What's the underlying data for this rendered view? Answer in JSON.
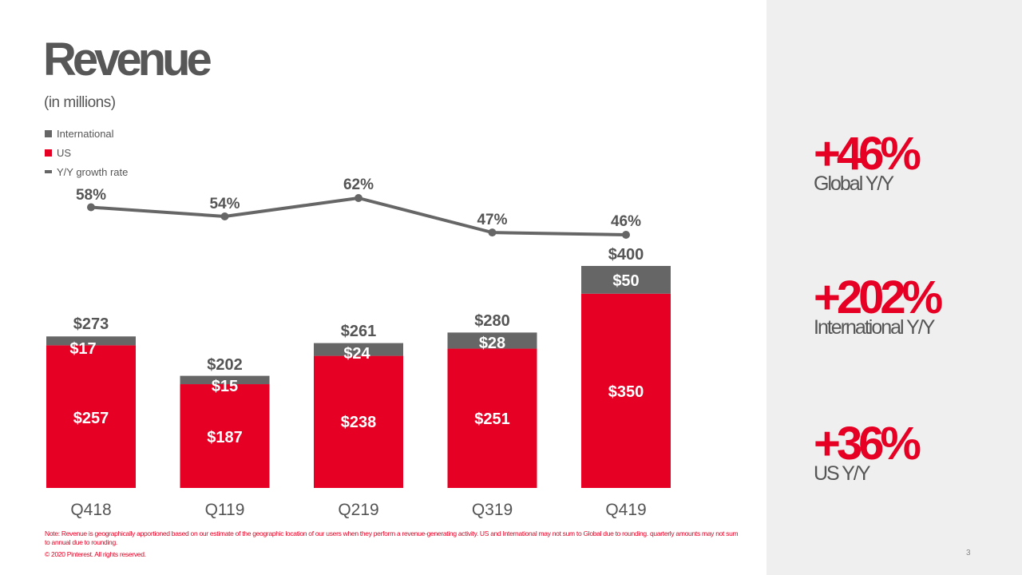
{
  "slide": {
    "title": "Revenue",
    "subtitle": "(in millions)",
    "footnote": "Note: Revenue is geographically apportioned based on our estimate of the geographic location of our users when they perform a revenue-generating activity. US and International may not sum to Global due to rounding. quarterly amounts may not sum to annual due to rounding.",
    "copyright": "© 2020 Pinterest. All rights reserved.",
    "page_number": "3"
  },
  "legend": [
    {
      "label": "International",
      "color": "#666666",
      "kind": "square"
    },
    {
      "label": "US",
      "color": "#e60023",
      "kind": "square"
    },
    {
      "label": "Y/Y growth rate",
      "color": "#666666",
      "kind": "line"
    }
  ],
  "stats": [
    {
      "value": "+46%",
      "label": "Global Y/Y"
    },
    {
      "value": "+202%",
      "label": "International Y/Y"
    },
    {
      "value": "+36%",
      "label": "US Y/Y"
    }
  ],
  "chart_data": {
    "type": "bar",
    "stacked": true,
    "categories": [
      "Q418",
      "Q119",
      "Q219",
      "Q319",
      "Q419"
    ],
    "series": [
      {
        "name": "US",
        "values": [
          257,
          187,
          238,
          251,
          350
        ],
        "labels": [
          "$257",
          "$187",
          "$238",
          "$251",
          "$350"
        ],
        "color": "#e60023"
      },
      {
        "name": "International",
        "values": [
          17,
          15,
          24,
          28,
          50
        ],
        "labels": [
          "$17",
          "$15",
          "$24",
          "$28",
          "$50"
        ],
        "color": "#666666"
      }
    ],
    "totals": [
      273,
      202,
      261,
      280,
      400
    ],
    "total_labels": [
      "$273",
      "$202",
      "$261",
      "$280",
      "$400"
    ],
    "line_series": {
      "name": "Y/Y growth rate",
      "values": [
        58,
        54,
        62,
        47,
        46
      ],
      "labels": [
        "58%",
        "54%",
        "62%",
        "47%",
        "46%"
      ],
      "color": "#666666"
    },
    "ylim": [
      0,
      400
    ],
    "grid": false
  }
}
